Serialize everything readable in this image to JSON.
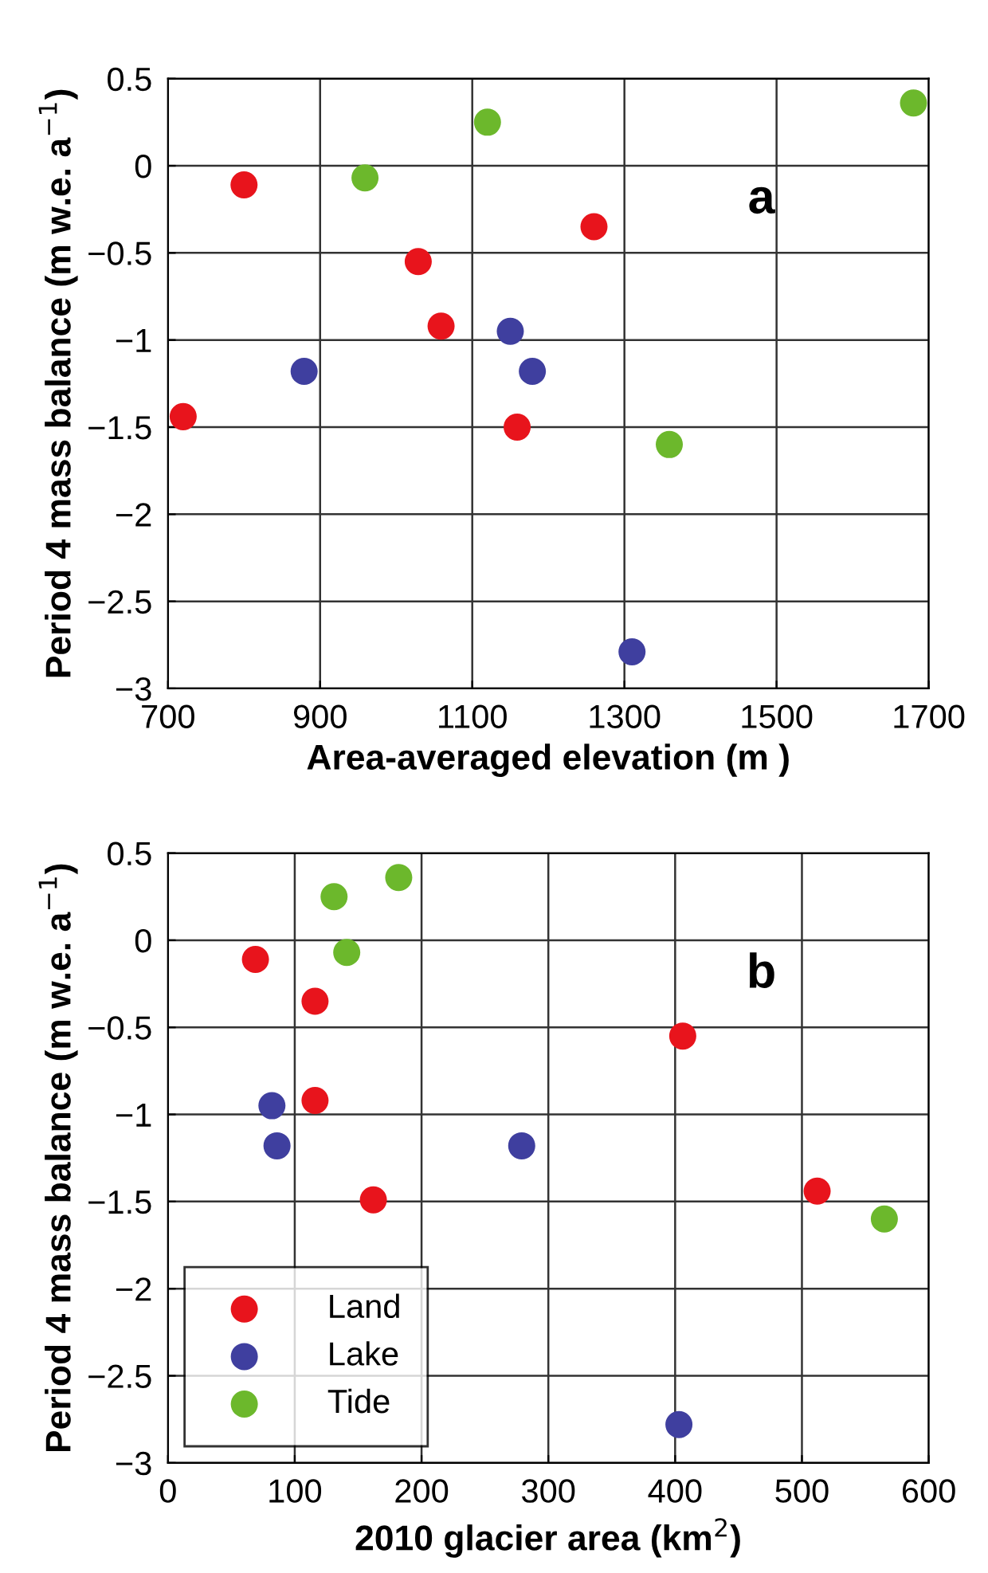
{
  "chart_data": [
    {
      "type": "scatter",
      "xlabel": "Area-averaged elevation (m )",
      "ylabel": "Period 4 mass balance (m w.e. a$^{−1}$)",
      "annotations": [
        "a"
      ],
      "xlim": [
        700,
        1700
      ],
      "xticks": [
        700,
        900,
        1100,
        1300,
        1500,
        1700
      ],
      "ylim": [
        -3,
        0.5
      ],
      "yticks": [
        -3,
        -2.5,
        -2,
        -1.5,
        -1,
        -0.5,
        0,
        0.5
      ],
      "grid": true,
      "marker": "circle",
      "legend": false,
      "series": [
        {
          "color": "#e8141c",
          "x": [
            800,
            1029,
            1059,
            720,
            1159,
            1260
          ],
          "values": [
            -0.11,
            -0.55,
            -0.92,
            -1.44,
            -1.5,
            -0.35
          ]
        },
        {
          "color": "#3f3f9f",
          "x": [
            879,
            1150,
            1179,
            1310
          ],
          "values": [
            -1.18,
            -0.95,
            -1.18,
            -2.79
          ]
        },
        {
          "color": "#6cb82c",
          "x": [
            959,
            1120,
            1359,
            1680
          ],
          "values": [
            -0.07,
            0.25,
            -1.6,
            0.36
          ]
        }
      ]
    },
    {
      "type": "scatter",
      "xlabel": "2010 glacier area (km$^{2}$)",
      "ylabel": "Period 4 mass balance (m w.e. a$^{−1}$)",
      "annotations": [
        "b"
      ],
      "xlim": [
        0,
        600
      ],
      "xticks": [
        0,
        100,
        200,
        300,
        400,
        500,
        600
      ],
      "ylim": [
        -3,
        0.5
      ],
      "yticks": [
        -3,
        -2.5,
        -2,
        -1.5,
        -1,
        -0.5,
        0,
        0.5
      ],
      "grid": true,
      "marker": "circle",
      "legend": "bottom left",
      "series": [
        {
          "name": "Land",
          "color": "#e8141c",
          "x": [
            69,
            116,
            116,
            162,
            406,
            512
          ],
          "values": [
            -0.11,
            -0.35,
            -0.92,
            -1.49,
            -0.55,
            -1.44
          ]
        },
        {
          "name": "Lake",
          "color": "#3f3f9f",
          "x": [
            82,
            86,
            279,
            403
          ],
          "values": [
            -0.95,
            -1.18,
            -1.18,
            -2.78
          ]
        },
        {
          "name": "Tide",
          "color": "#6cb82c",
          "x": [
            131,
            182,
            141,
            565
          ],
          "values": [
            0.25,
            0.36,
            -0.07,
            -1.6
          ]
        }
      ]
    }
  ]
}
